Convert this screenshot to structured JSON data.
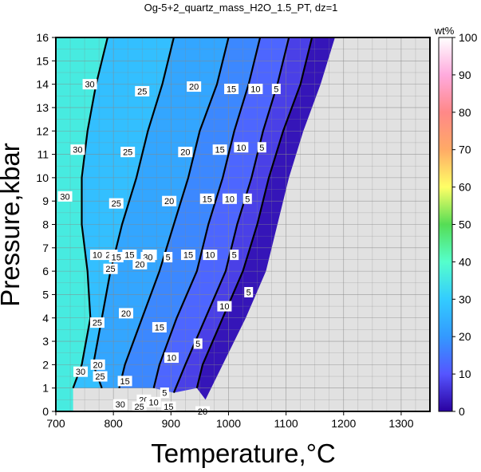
{
  "chart_data": {
    "type": "heatmap",
    "title": "Og-5+2_quartz_mass_H2O_1.5_PT, dz=1",
    "xlabel": "Temperature,°C",
    "ylabel": "Pressure,kbar",
    "xlim": [
      700,
      1350
    ],
    "ylim": [
      0,
      16
    ],
    "x_ticks": [
      700,
      800,
      900,
      1000,
      1100,
      1200,
      1300
    ],
    "y_ticks": [
      0,
      1,
      2,
      3,
      4,
      5,
      6,
      7,
      8,
      9,
      10,
      11,
      12,
      13,
      14,
      15,
      16
    ],
    "grid": true,
    "colorbar": {
      "label": "wt%",
      "range": [
        0,
        100
      ],
      "ticks": [
        0,
        10,
        20,
        30,
        40,
        50,
        60,
        70,
        80,
        90,
        100
      ],
      "colors": [
        "#2a00a0",
        "#5555ff",
        "#3399ff",
        "#33ccff",
        "#55ffcc",
        "#55dd55",
        "#ffff66",
        "#ffaa66",
        "#ff8888",
        "#ffaadd",
        "#ffffff"
      ]
    },
    "no_data_color": "#e1e1e1",
    "contour_levels": [
      5,
      10,
      15,
      20,
      25,
      30
    ],
    "contours": [
      {
        "level": 5,
        "points": [
          [
            1145,
            16
          ],
          [
            1125,
            14
          ],
          [
            1095,
            12
          ],
          [
            1070,
            10
          ],
          [
            1050,
            8
          ],
          [
            1025,
            6
          ],
          [
            990,
            4
          ],
          [
            955,
            2
          ],
          [
            945,
            1
          ]
        ]
      },
      {
        "level": 10,
        "points": [
          [
            1105,
            16
          ],
          [
            1085,
            14
          ],
          [
            1060,
            12
          ],
          [
            1040,
            10
          ],
          [
            1015,
            8
          ],
          [
            995,
            6
          ],
          [
            960,
            4
          ],
          [
            925,
            2
          ],
          [
            905,
            0.8
          ]
        ]
      },
      {
        "level": 15,
        "points": [
          [
            1055,
            16
          ],
          [
            1035,
            14
          ],
          [
            1010,
            12
          ],
          [
            990,
            10
          ],
          [
            965,
            8
          ],
          [
            945,
            6
          ],
          [
            910,
            4
          ],
          [
            880,
            2
          ],
          [
            870,
            1
          ]
        ]
      },
      {
        "level": 20,
        "points": [
          [
            1000,
            16
          ],
          [
            980,
            14
          ],
          [
            950,
            12
          ],
          [
            930,
            10
          ],
          [
            905,
            8
          ],
          [
            880,
            6
          ],
          [
            850,
            4
          ],
          [
            820,
            2
          ],
          [
            810,
            1
          ]
        ]
      },
      {
        "level": 25,
        "points": [
          [
            905,
            16
          ],
          [
            885,
            14
          ],
          [
            860,
            12
          ],
          [
            840,
            10
          ],
          [
            815,
            8
          ],
          [
            795,
            6
          ],
          [
            780,
            4
          ],
          [
            765,
            2
          ],
          [
            780,
            1
          ]
        ]
      },
      {
        "level": 30,
        "points": [
          [
            790,
            16
          ],
          [
            770,
            14
          ],
          [
            755,
            12
          ],
          [
            745,
            10
          ],
          [
            745,
            8
          ],
          [
            755,
            6
          ],
          [
            760,
            4
          ],
          [
            745,
            2
          ],
          [
            730,
            1
          ]
        ]
      }
    ],
    "contour_labels": [
      {
        "level": "30",
        "x": 759,
        "y": 14.0
      },
      {
        "level": "25",
        "x": 850,
        "y": 13.7
      },
      {
        "level": "20",
        "x": 940,
        "y": 13.9
      },
      {
        "level": "15",
        "x": 1005,
        "y": 13.8
      },
      {
        "level": "10",
        "x": 1047,
        "y": 13.8
      },
      {
        "level": "5",
        "x": 1083,
        "y": 13.8
      },
      {
        "level": "30",
        "x": 738,
        "y": 11.2
      },
      {
        "level": "25",
        "x": 825,
        "y": 11.1
      },
      {
        "level": "20",
        "x": 925,
        "y": 11.1
      },
      {
        "level": "15",
        "x": 985,
        "y": 11.2
      },
      {
        "level": "10",
        "x": 1022,
        "y": 11.3
      },
      {
        "level": "5",
        "x": 1058,
        "y": 11.3
      },
      {
        "level": "30",
        "x": 716,
        "y": 9.2
      },
      {
        "level": "25",
        "x": 805,
        "y": 8.9
      },
      {
        "level": "20",
        "x": 897,
        "y": 9.0
      },
      {
        "level": "15",
        "x": 963,
        "y": 9.1
      },
      {
        "level": "10",
        "x": 1002,
        "y": 9.1
      },
      {
        "level": "5",
        "x": 1033,
        "y": 9.1
      },
      {
        "level": "10",
        "x": 772,
        "y": 6.7
      },
      {
        "level": "25",
        "x": 795,
        "y": 6.7
      },
      {
        "level": "15",
        "x": 805,
        "y": 6.6
      },
      {
        "level": "15",
        "x": 828,
        "y": 6.7
      },
      {
        "level": "20",
        "x": 863,
        "y": 6.7
      },
      {
        "level": "30",
        "x": 860,
        "y": 6.6
      },
      {
        "level": "5",
        "x": 895,
        "y": 6.6
      },
      {
        "level": "15",
        "x": 930,
        "y": 6.7
      },
      {
        "level": "10",
        "x": 968,
        "y": 6.7
      },
      {
        "level": "5",
        "x": 1010,
        "y": 6.7
      },
      {
        "level": "25",
        "x": 795,
        "y": 6.1
      },
      {
        "level": "20",
        "x": 846,
        "y": 6.3
      },
      {
        "level": "5",
        "x": 1035,
        "y": 5.1
      },
      {
        "level": "10",
        "x": 993,
        "y": 4.5
      },
      {
        "level": "25",
        "x": 772,
        "y": 3.8
      },
      {
        "level": "20",
        "x": 822,
        "y": 4.2
      },
      {
        "level": "15",
        "x": 880,
        "y": 3.6
      },
      {
        "level": "5",
        "x": 947,
        "y": 2.9
      },
      {
        "level": "10",
        "x": 901,
        "y": 2.3
      },
      {
        "level": "20",
        "x": 773,
        "y": 2.0
      },
      {
        "level": "25",
        "x": 777,
        "y": 1.5
      },
      {
        "level": "30",
        "x": 743,
        "y": 1.7
      },
      {
        "level": "15",
        "x": 820,
        "y": 1.3
      },
      {
        "level": "5",
        "x": 889,
        "y": 0.8
      },
      {
        "level": "20",
        "x": 853,
        "y": 0.5
      },
      {
        "level": "10",
        "x": 870,
        "y": 0.4
      },
      {
        "level": "30",
        "x": 812,
        "y": 0.3
      },
      {
        "level": "25",
        "x": 845,
        "y": 0.2
      },
      {
        "level": "15",
        "x": 896,
        "y": 0.2
      },
      {
        "level": "20",
        "x": 955,
        "y": 0.0
      }
    ]
  }
}
